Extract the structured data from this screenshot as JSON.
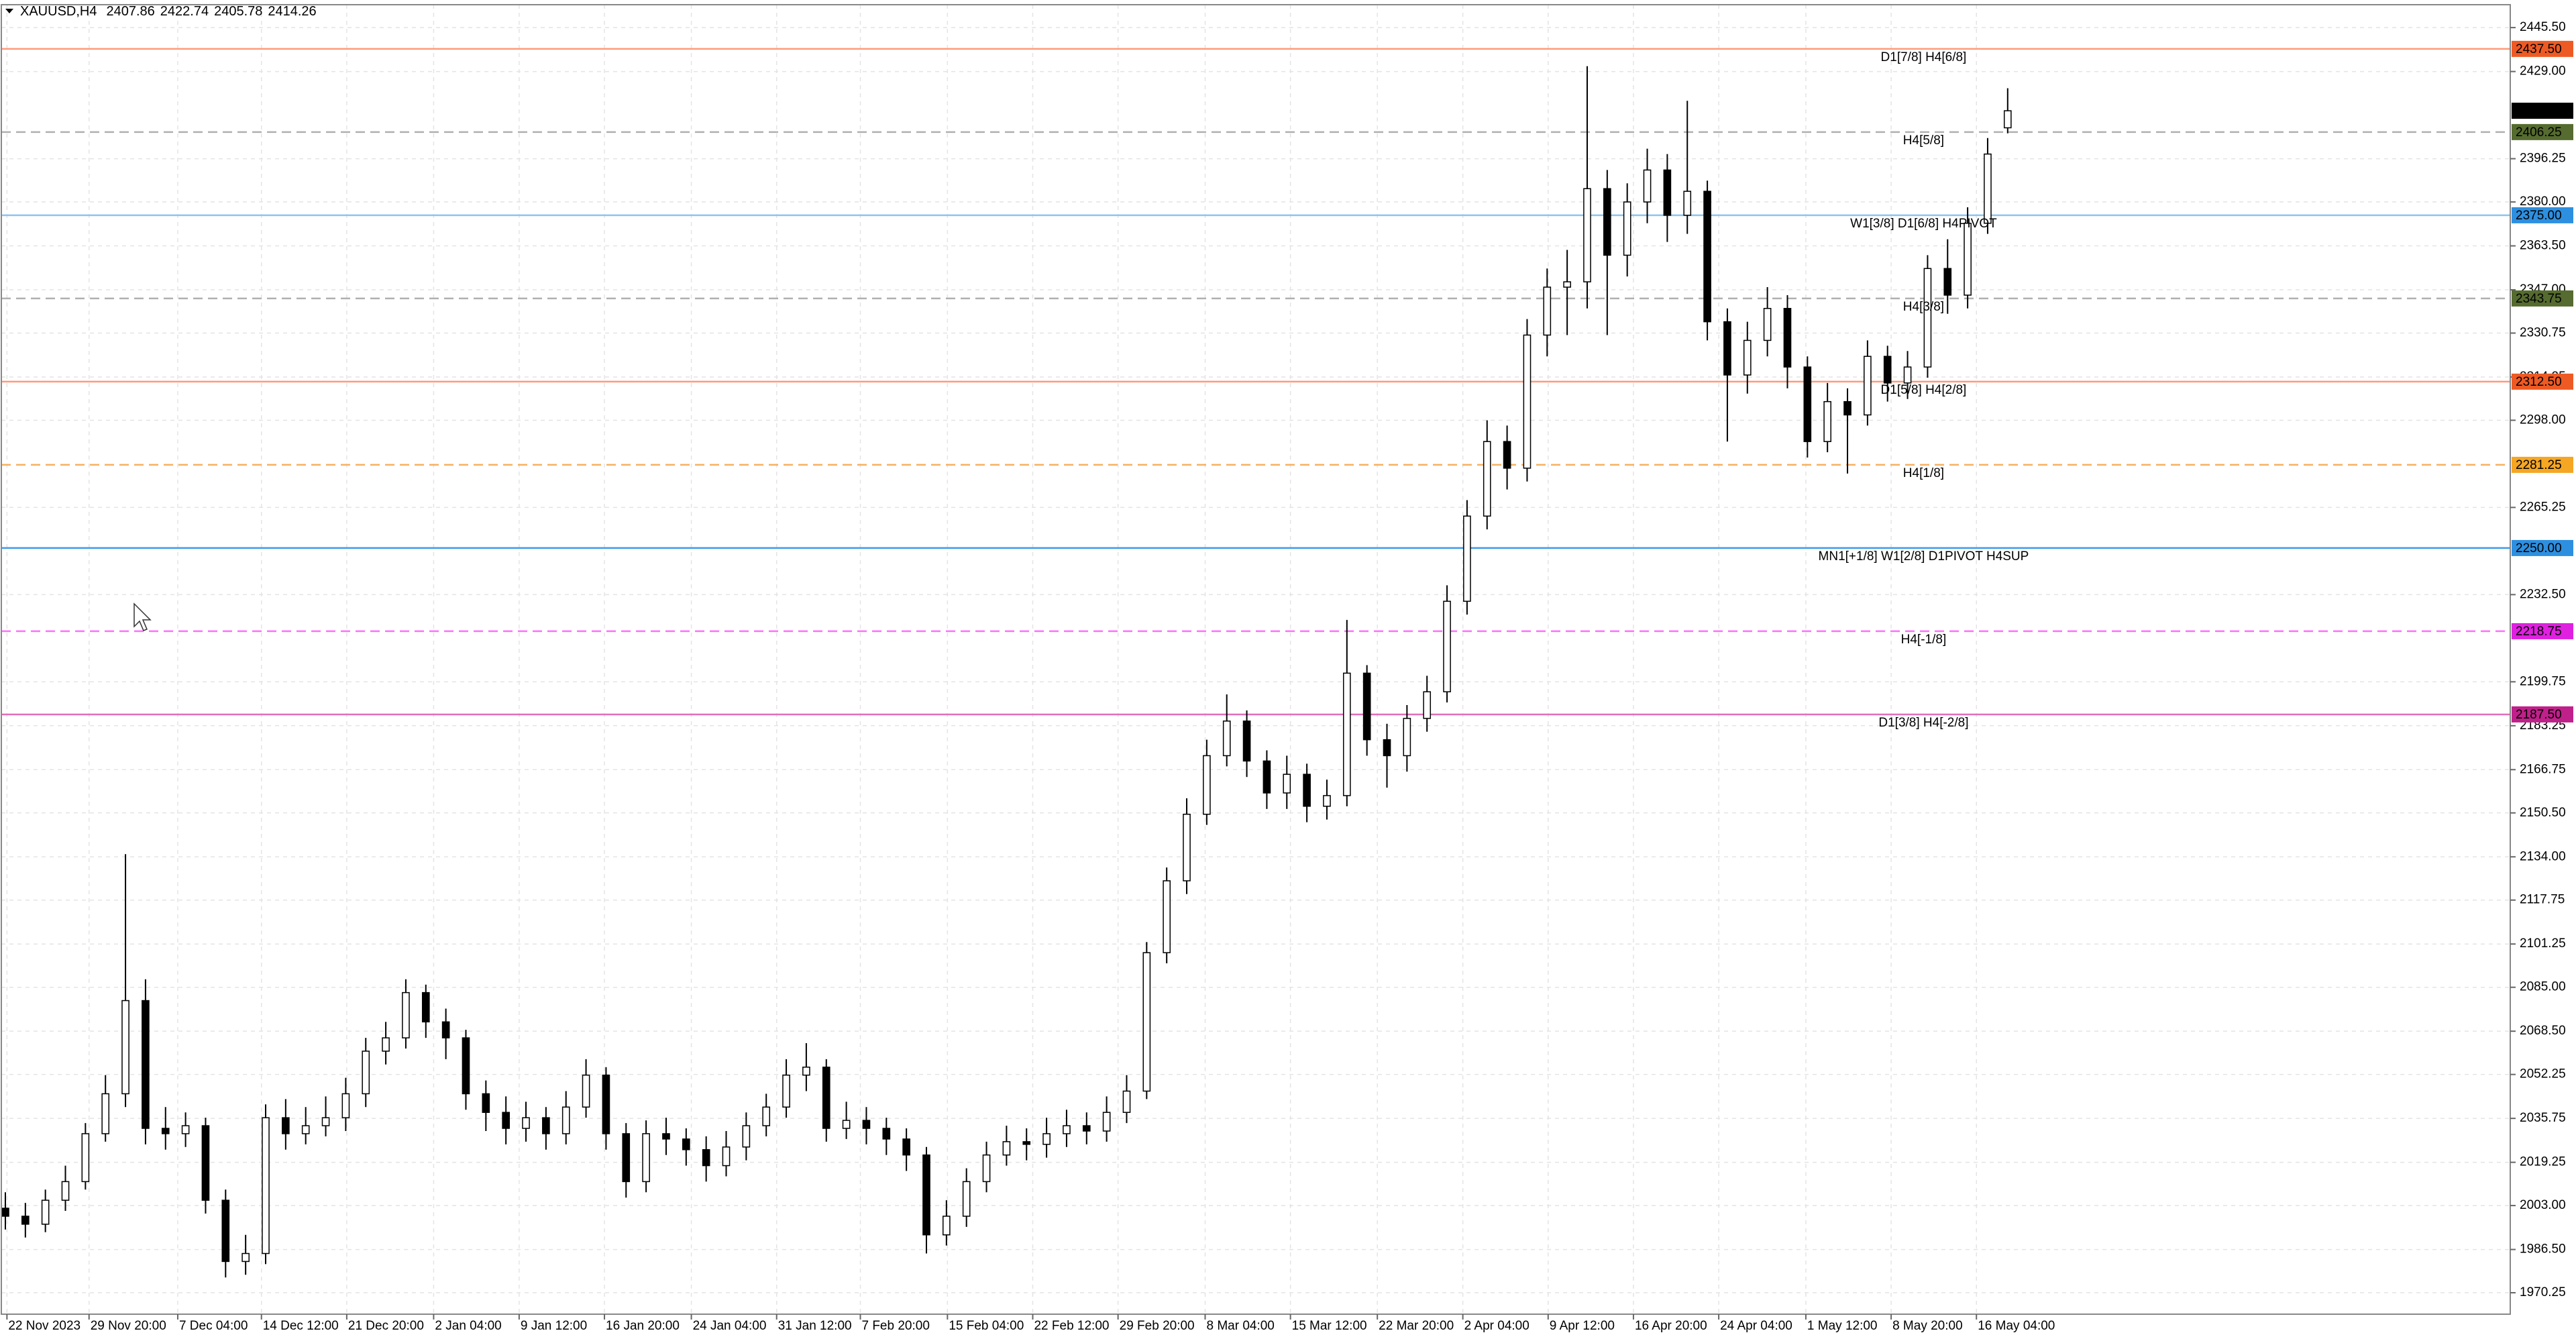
{
  "chart_data": {
    "type": "candlestick",
    "title": "XAUUSD,H4",
    "bull_color": "#ffffff",
    "bear_color": "#000000",
    "wick_color": "#000000",
    "grid": true,
    "xlim": [
      -0.2,
      125.1
    ],
    "xticks": [
      {
        "value": 0.08,
        "label": "22 Nov 2023"
      },
      {
        "value": 4.18,
        "label": "29 Nov 20:00"
      },
      {
        "value": 8.61,
        "label": "7 Dec 04:00"
      },
      {
        "value": 12.79,
        "label": "14 Dec 12:00"
      },
      {
        "value": 17.05,
        "label": "21 Dec 20:00"
      },
      {
        "value": 21.39,
        "label": "2 Jan 04:00"
      },
      {
        "value": 25.66,
        "label": "9 Jan 12:00"
      },
      {
        "value": 29.92,
        "label": "16 Jan 20:00"
      },
      {
        "value": 34.26,
        "label": "24 Jan 04:00"
      },
      {
        "value": 38.52,
        "label": "31 Jan 12:00"
      },
      {
        "value": 42.7,
        "label": "7 Feb 20:00"
      },
      {
        "value": 47.05,
        "label": "15 Feb 04:00"
      },
      {
        "value": 51.31,
        "label": "22 Feb 12:00"
      },
      {
        "value": 55.57,
        "label": "29 Feb 20:00"
      },
      {
        "value": 59.92,
        "label": "8 Mar 04:00"
      },
      {
        "value": 64.18,
        "label": "15 Mar 12:00"
      },
      {
        "value": 68.52,
        "label": "22 Mar 20:00"
      },
      {
        "value": 72.79,
        "label": "2 Apr 04:00"
      },
      {
        "value": 77.05,
        "label": "9 Apr 12:00"
      },
      {
        "value": 81.31,
        "label": "16 Apr 20:00"
      },
      {
        "value": 85.57,
        "label": "24 Apr 04:00"
      },
      {
        "value": 89.92,
        "label": "1 May 12:00"
      },
      {
        "value": 94.18,
        "label": "8 May 20:00"
      },
      {
        "value": 98.44,
        "label": "16 May 04:00"
      }
    ],
    "ylim": [
      1962.2,
      2454.1
    ],
    "yticks": [
      {
        "value": 2445.5,
        "label": "2445.50"
      },
      {
        "value": 2429,
        "label": "2429.00"
      },
      {
        "value": 2396.25,
        "label": "2396.25"
      },
      {
        "value": 2380,
        "label": "2380.00"
      },
      {
        "value": 2363.5,
        "label": "2363.50"
      },
      {
        "value": 2347,
        "label": "2347.00"
      },
      {
        "value": 2330.75,
        "label": "2330.75"
      },
      {
        "value": 2314.25,
        "label": "2314.25"
      },
      {
        "value": 2298,
        "label": "2298.00"
      },
      {
        "value": 2265.25,
        "label": "2265.25"
      },
      {
        "value": 2232.5,
        "label": "2232.50"
      },
      {
        "value": 2199.75,
        "label": "2199.75"
      },
      {
        "value": 2183.25,
        "label": "2183.25"
      },
      {
        "value": 2166.75,
        "label": "2166.75"
      },
      {
        "value": 2150.5,
        "label": "2150.50"
      },
      {
        "value": 2134,
        "label": "2134.00"
      },
      {
        "value": 2117.75,
        "label": "2117.75"
      },
      {
        "value": 2101.25,
        "label": "2101.25"
      },
      {
        "value": 2085,
        "label": "2085.00"
      },
      {
        "value": 2068.5,
        "label": "2068.50"
      },
      {
        "value": 2052.25,
        "label": "2052.25"
      },
      {
        "value": 2035.75,
        "label": "2035.75"
      },
      {
        "value": 2019.25,
        "label": "2019.25"
      },
      {
        "value": 2003,
        "label": "2003.00"
      },
      {
        "value": 1986.5,
        "label": "1986.50"
      },
      {
        "value": 1970.25,
        "label": "1970.25"
      }
    ],
    "open": [
      2002,
      1999,
      1996,
      2005,
      2012,
      2030,
      2045,
      2080,
      2032,
      2030,
      2033,
      2005,
      1982,
      1985,
      2036,
      2030,
      2033,
      2036,
      2045,
      2061,
      2066,
      2083,
      2072,
      2066,
      2045,
      2038,
      2032,
      2036,
      2030,
      2040,
      2052,
      2030,
      2012,
      2030,
      2028,
      2024,
      2018,
      2025,
      2033,
      2040,
      2052,
      2055,
      2032,
      2035,
      2032,
      2028,
      2022,
      1992,
      1999,
      2012,
      2022,
      2027,
      2026,
      2030,
      2033,
      2031,
      2038,
      2046,
      2098,
      2125,
      2150,
      2172,
      2185,
      2170,
      2158,
      2165,
      2153,
      2157,
      2203,
      2178,
      2172,
      2186,
      2196,
      2230,
      2262,
      2290,
      2280,
      2330,
      2348,
      2350,
      2385,
      2360,
      2380,
      2392,
      2375,
      2384,
      2335,
      2315,
      2328,
      2340,
      2318,
      2290,
      2305,
      2300,
      2322,
      2312,
      2318,
      2355,
      2345,
      2372,
      2407.86
    ],
    "high": [
      2008,
      2004,
      2009,
      2018,
      2034,
      2052,
      2135,
      2088,
      2040,
      2038,
      2036,
      2009,
      1992,
      2041,
      2043,
      2040,
      2044,
      2051,
      2066,
      2072,
      2088,
      2086,
      2077,
      2069,
      2050,
      2044,
      2042,
      2040,
      2046,
      2058,
      2055,
      2034,
      2035,
      2036,
      2032,
      2029,
      2031,
      2038,
      2045,
      2058,
      2064,
      2058,
      2042,
      2040,
      2036,
      2032,
      2025,
      2005,
      2017,
      2027,
      2033,
      2032,
      2036,
      2039,
      2038,
      2044,
      2052,
      2102,
      2130,
      2156,
      2178,
      2195,
      2189,
      2174,
      2172,
      2169,
      2163,
      2223,
      2206,
      2184,
      2191,
      2202,
      2236,
      2268,
      2298,
      2296,
      2336,
      2355,
      2362,
      2431,
      2392,
      2387,
      2400,
      2398,
      2418,
      2388,
      2340,
      2335,
      2348,
      2345,
      2322,
      2312,
      2310,
      2328,
      2326,
      2324,
      2360,
      2366,
      2378,
      2404,
      2422.74
    ],
    "low": [
      1994,
      1991,
      1993,
      2001,
      2009,
      2027,
      2040,
      2026,
      2024,
      2025,
      2000,
      1976,
      1977,
      1981,
      2024,
      2026,
      2029,
      2031,
      2040,
      2056,
      2062,
      2066,
      2058,
      2039,
      2031,
      2026,
      2027,
      2024,
      2026,
      2036,
      2024,
      2006,
      2008,
      2022,
      2018,
      2012,
      2014,
      2020,
      2029,
      2036,
      2046,
      2027,
      2028,
      2026,
      2022,
      2016,
      1985,
      1988,
      1995,
      2008,
      2018,
      2020,
      2021,
      2025,
      2026,
      2027,
      2034,
      2043,
      2094,
      2120,
      2146,
      2168,
      2164,
      2152,
      2152,
      2147,
      2148,
      2153,
      2172,
      2160,
      2166,
      2181,
      2192,
      2225,
      2257,
      2272,
      2275,
      2322,
      2330,
      2340,
      2330,
      2352,
      2372,
      2365,
      2368,
      2328,
      2290,
      2308,
      2322,
      2310,
      2284,
      2286,
      2278,
      2296,
      2305,
      2306,
      2314,
      2338,
      2340,
      2368,
      2405.78
    ],
    "close": [
      1999,
      1996,
      2005,
      2012,
      2030,
      2045,
      2080,
      2032,
      2030,
      2033,
      2005,
      1982,
      1985,
      2036,
      2030,
      2033,
      2036,
      2045,
      2061,
      2066,
      2083,
      2072,
      2066,
      2045,
      2038,
      2032,
      2036,
      2030,
      2040,
      2052,
      2030,
      2012,
      2030,
      2028,
      2024,
      2018,
      2025,
      2033,
      2040,
      2052,
      2055,
      2032,
      2035,
      2032,
      2028,
      2022,
      1992,
      1999,
      2012,
      2022,
      2027,
      2026,
      2030,
      2033,
      2031,
      2038,
      2046,
      2098,
      2125,
      2150,
      2172,
      2185,
      2170,
      2158,
      2165,
      2153,
      2157,
      2203,
      2178,
      2172,
      2186,
      2196,
      2230,
      2262,
      2290,
      2280,
      2330,
      2348,
      2350,
      2385,
      2360,
      2380,
      2392,
      2375,
      2384,
      2335,
      2315,
      2328,
      2340,
      2318,
      2290,
      2305,
      2300,
      2322,
      2312,
      2318,
      2355,
      2345,
      2372,
      2398,
      2414.26
    ],
    "levels": [
      {
        "value": 2437.5,
        "value_label": "2437.50",
        "label": "D1[7/8] H4[6/8]",
        "color": "#ff9a7a",
        "text_color": "#e8541a",
        "badge_color": "#ee5a24",
        "dashed": false
      },
      {
        "value": 2406.25,
        "value_label": "2406.25",
        "label": "H4[5/8]",
        "color": "#b0b0b0",
        "text_color": "#5f6f2a",
        "badge_color": "#556b2f",
        "dashed": true
      },
      {
        "value": 2375,
        "value_label": "2375.00",
        "label": "W1[3/8] D1[6/8] H4PIVOT",
        "color": "#8cc4f2",
        "text_color": "#2d8fe0",
        "badge_color": "#2d8fe0",
        "dashed": false
      },
      {
        "value": 2343.75,
        "value_label": "2343.75",
        "label": "H4[3/8]",
        "color": "#b0b0b0",
        "text_color": "#5f6f2a",
        "badge_color": "#556b2f",
        "dashed": true
      },
      {
        "value": 2312.5,
        "value_label": "2312.50",
        "label": "D1[5/8] H4[2/8]",
        "color": "#ff9a7a",
        "text_color": "#e8541a",
        "badge_color": "#ee5a24",
        "dashed": false
      },
      {
        "value": 2281.25,
        "value_label": "2281.25",
        "label": "H4[1/8]",
        "color": "#f5b060",
        "text_color": "#f09020",
        "badge_color": "#f5a623",
        "dashed": true
      },
      {
        "value": 2250,
        "value_label": "2250.00",
        "label": "MN1[+1/8] W1[2/8] D1PIVOT H4SUP",
        "color": "#3d9be9",
        "text_color": "#2d8fe0",
        "badge_color": "#2d8fe0",
        "dashed": false
      },
      {
        "value": 2218.75,
        "value_label": "2218.75",
        "label": "H4[-1/8]",
        "color": "#ff70ff",
        "text_color": "#e020e0",
        "badge_color": "#e020e0",
        "dashed": true
      },
      {
        "value": 2187.5,
        "value_label": "2187.50",
        "label": "D1[3/8] H4[-2/8]",
        "color": "#e070b8",
        "text_color": "#c0208a",
        "badge_color": "#c0208a",
        "dashed": false
      }
    ]
  }
}
